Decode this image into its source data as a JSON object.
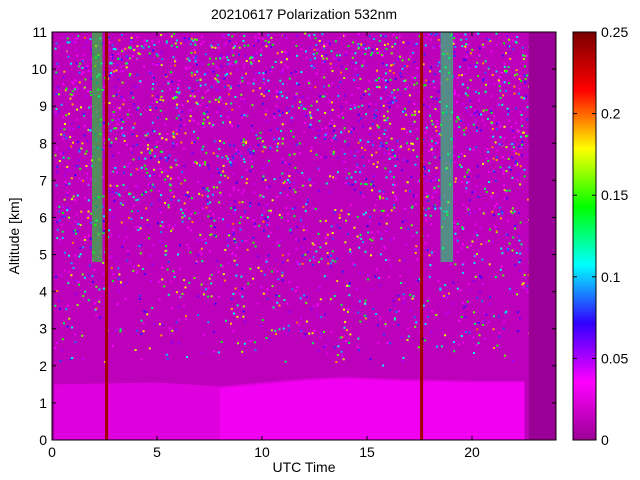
{
  "chart_data": {
    "type": "heatmap",
    "title": "20210617 Polarization 532nm",
    "xlabel": "UTC Time",
    "ylabel": "Altitude [km]",
    "xlim": [
      0,
      24
    ],
    "ylim": [
      0,
      11
    ],
    "x_ticks": [
      0,
      5,
      10,
      15,
      20
    ],
    "y_ticks": [
      0,
      1,
      2,
      3,
      4,
      5,
      6,
      7,
      8,
      9,
      10,
      11
    ],
    "colorbar": {
      "range": [
        0,
        0.25
      ],
      "ticks": [
        0,
        0.05,
        0.1,
        0.15,
        0.2,
        0.25
      ],
      "tick_labels": [
        "0",
        "0.05",
        "0.1",
        "0.15",
        "0.2",
        "0.25"
      ],
      "colormap": "hsv",
      "colors": [
        "#9b0096",
        "#ff00ff",
        "#3200ff",
        "#00ffff",
        "#00ff00",
        "#ffff00",
        "#ff0000",
        "#7a0000"
      ]
    },
    "boundary_layer_top_km": [
      {
        "t": 0.0,
        "h": 1.5
      },
      {
        "t": 5.0,
        "h": 1.55
      },
      {
        "t": 8.0,
        "h": 1.45
      },
      {
        "t": 10.0,
        "h": 1.55
      },
      {
        "t": 12.0,
        "h": 1.65
      },
      {
        "t": 14.0,
        "h": 1.7
      },
      {
        "t": 16.0,
        "h": 1.65
      },
      {
        "t": 20.0,
        "h": 1.6
      },
      {
        "t": 22.5,
        "h": 1.6
      }
    ],
    "high_depolarization_columns_utc": [
      {
        "from": 1.9,
        "to": 2.4,
        "value": 0.14
      },
      {
        "from": 18.5,
        "to": 19.1,
        "value": 0.13
      }
    ],
    "cloud_spikes_utc": [
      2.6,
      17.6
    ],
    "no_data_utc": [
      [
        0.0,
        0.1
      ],
      [
        22.7,
        24.0
      ]
    ]
  }
}
